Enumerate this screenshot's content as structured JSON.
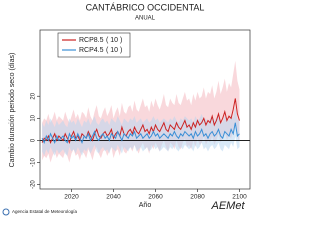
{
  "chart_data": {
    "type": "line",
    "title": "CANTÁBRICO OCCIDENTAL",
    "subtitle": "ANUAL",
    "y_label": "Cambio duración periodo seco (días)",
    "x_label": "Año",
    "source": "Agencia Estatal de Meteorología",
    "logo_text": "AEMet",
    "xlim": [
      2005,
      2105
    ],
    "xticks": [
      2020,
      2040,
      2060,
      2080,
      2100
    ],
    "ylim": [
      -22,
      50
    ],
    "yticks": [
      -20,
      -10,
      0,
      10,
      20
    ],
    "zero_line": 0,
    "x": [
      2006,
      2007,
      2008,
      2009,
      2010,
      2011,
      2012,
      2013,
      2014,
      2015,
      2016,
      2017,
      2018,
      2019,
      2020,
      2021,
      2022,
      2023,
      2024,
      2025,
      2026,
      2027,
      2028,
      2029,
      2030,
      2031,
      2032,
      2033,
      2034,
      2035,
      2036,
      2037,
      2038,
      2039,
      2040,
      2041,
      2042,
      2043,
      2044,
      2045,
      2046,
      2047,
      2048,
      2049,
      2050,
      2051,
      2052,
      2053,
      2054,
      2055,
      2056,
      2057,
      2058,
      2059,
      2060,
      2061,
      2062,
      2063,
      2064,
      2065,
      2066,
      2067,
      2068,
      2069,
      2070,
      2071,
      2072,
      2073,
      2074,
      2075,
      2076,
      2077,
      2078,
      2079,
      2080,
      2081,
      2082,
      2083,
      2084,
      2085,
      2086,
      2087,
      2088,
      2089,
      2090,
      2091,
      2092,
      2093,
      2094,
      2095,
      2096,
      2097,
      2098,
      2099,
      2100
    ],
    "series": [
      {
        "name": "RCP8.5",
        "count_label": "( 10 )",
        "color": "#cc2222",
        "band_color": "#f4b8c0",
        "values": [
          -1,
          1,
          0,
          2,
          -1,
          1,
          3,
          0,
          2,
          1,
          0,
          3,
          1,
          -1,
          2,
          4,
          1,
          2,
          0,
          3,
          2,
          1,
          4,
          2,
          0,
          3,
          5,
          2,
          1,
          3,
          4,
          2,
          3,
          5,
          1,
          3,
          4,
          2,
          6,
          3,
          2,
          4,
          5,
          3,
          6,
          4,
          3,
          5,
          7,
          4,
          5,
          3,
          6,
          4,
          7,
          5,
          4,
          6,
          8,
          5,
          4,
          7,
          6,
          5,
          8,
          6,
          5,
          7,
          9,
          6,
          7,
          5,
          8,
          6,
          9,
          7,
          8,
          10,
          7,
          9,
          8,
          11,
          7,
          9,
          12,
          8,
          10,
          13,
          9,
          11,
          10,
          14,
          19,
          12,
          9
        ],
        "upper": [
          8,
          10,
          9,
          12,
          8,
          10,
          13,
          9,
          11,
          10,
          9,
          13,
          10,
          8,
          11,
          14,
          10,
          12,
          9,
          13,
          12,
          10,
          15,
          11,
          9,
          13,
          16,
          11,
          10,
          13,
          15,
          11,
          13,
          16,
          10,
          13,
          15,
          11,
          17,
          13,
          12,
          15,
          16,
          13,
          18,
          14,
          13,
          16,
          19,
          15,
          16,
          13,
          18,
          15,
          19,
          16,
          14,
          17,
          21,
          16,
          15,
          19,
          17,
          16,
          21,
          17,
          16,
          19,
          22,
          18,
          19,
          16,
          21,
          18,
          22,
          19,
          20,
          24,
          19,
          22,
          21,
          25,
          19,
          22,
          27,
          21,
          24,
          28,
          22,
          26,
          24,
          30,
          36,
          27,
          23
        ],
        "lower": [
          -9,
          -7,
          -8,
          -6,
          -10,
          -7,
          -5,
          -8,
          -6,
          -7,
          -8,
          -5,
          -7,
          -10,
          -6,
          -4,
          -7,
          -6,
          -9,
          -5,
          -6,
          -8,
          -4,
          -6,
          -9,
          -5,
          -3,
          -6,
          -8,
          -5,
          -4,
          -7,
          -5,
          -3,
          -8,
          -5,
          -4,
          -7,
          -2,
          -5,
          -6,
          -4,
          -3,
          -5,
          -2,
          -4,
          -6,
          -3,
          -1,
          -4,
          -3,
          -6,
          -2,
          -4,
          -1,
          -3,
          -5,
          -2,
          0,
          -3,
          -5,
          -1,
          -2,
          -4,
          0,
          -3,
          -4,
          -1,
          1,
          -3,
          -2,
          -4,
          0,
          -3,
          1,
          -2,
          -1,
          2,
          -2,
          0,
          -1,
          2,
          -2,
          0,
          3,
          -1,
          1,
          4,
          0,
          2,
          1,
          4,
          8,
          2,
          -1
        ]
      },
      {
        "name": "RCP4.5",
        "count_label": "( 10 )",
        "color": "#3a8fd6",
        "band_color": "#b9d7f0",
        "values": [
          1,
          -1,
          2,
          0,
          3,
          1,
          -1,
          2,
          0,
          1,
          2,
          0,
          -1,
          3,
          1,
          2,
          0,
          3,
          1,
          -1,
          2,
          1,
          3,
          0,
          2,
          4,
          1,
          0,
          2,
          3,
          1,
          2,
          0,
          3,
          2,
          1,
          4,
          2,
          0,
          3,
          2,
          1,
          3,
          2,
          4,
          1,
          2,
          3,
          1,
          2,
          3,
          1,
          2,
          4,
          2,
          3,
          1,
          2,
          3,
          2,
          1,
          3,
          2,
          4,
          2,
          1,
          3,
          2,
          4,
          3,
          2,
          3,
          1,
          4,
          2,
          3,
          5,
          2,
          3,
          1,
          3,
          4,
          2,
          3,
          5,
          2,
          1,
          4,
          3,
          2,
          5,
          3,
          8,
          2,
          3
        ],
        "upper": [
          8,
          6,
          9,
          7,
          10,
          8,
          6,
          9,
          7,
          8,
          9,
          7,
          6,
          10,
          8,
          9,
          7,
          10,
          8,
          6,
          9,
          8,
          10,
          7,
          9,
          11,
          8,
          7,
          9,
          10,
          8,
          9,
          7,
          10,
          9,
          8,
          11,
          9,
          7,
          10,
          9,
          8,
          10,
          9,
          11,
          8,
          9,
          10,
          8,
          9,
          10,
          8,
          9,
          11,
          9,
          10,
          8,
          9,
          10,
          9,
          8,
          10,
          9,
          11,
          9,
          8,
          10,
          9,
          11,
          10,
          9,
          10,
          8,
          11,
          9,
          10,
          12,
          9,
          10,
          8,
          10,
          11,
          9,
          10,
          12,
          9,
          8,
          11,
          10,
          9,
          12,
          10,
          15,
          9,
          10
        ],
        "lower": [
          -5,
          -7,
          -4,
          -6,
          -3,
          -5,
          -7,
          -4,
          -6,
          -5,
          -4,
          -6,
          -7,
          -3,
          -5,
          -4,
          -6,
          -3,
          -5,
          -7,
          -4,
          -5,
          -3,
          -6,
          -4,
          -2,
          -5,
          -6,
          -4,
          -3,
          -5,
          -4,
          -6,
          -3,
          -4,
          -5,
          -2,
          -4,
          -6,
          -3,
          -4,
          -5,
          -3,
          -4,
          -2,
          -5,
          -4,
          -3,
          -5,
          -4,
          -3,
          -5,
          -4,
          -2,
          -4,
          -3,
          -5,
          -4,
          -3,
          -4,
          -5,
          -3,
          -4,
          -2,
          -4,
          -5,
          -3,
          -4,
          -2,
          -3,
          -4,
          -3,
          -5,
          -2,
          -4,
          -3,
          -1,
          -4,
          -3,
          -5,
          -3,
          -2,
          -4,
          -3,
          -1,
          -4,
          -5,
          -2,
          -3,
          -4,
          -1,
          -3,
          2,
          -4,
          -3
        ]
      }
    ]
  }
}
